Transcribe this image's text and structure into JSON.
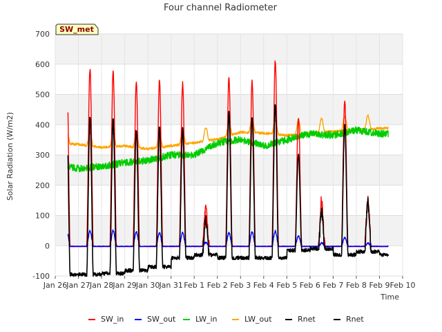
{
  "chart_data": {
    "type": "line",
    "title": "Four channel Radiometer",
    "xlabel": "Time",
    "ylabel": "Solar Radiation (W/m2)",
    "badge": "SW_met",
    "ylim": [
      -100,
      700
    ],
    "xlim": [
      0,
      15
    ],
    "yticks": [
      -100,
      0,
      100,
      200,
      300,
      400,
      500,
      600,
      700
    ],
    "xticks": [
      {
        "x": 0,
        "label": "Jan 26"
      },
      {
        "x": 1,
        "label": "Jan 27"
      },
      {
        "x": 2,
        "label": "Jan 28"
      },
      {
        "x": 3,
        "label": "Jan 29"
      },
      {
        "x": 4,
        "label": "Jan 30"
      },
      {
        "x": 5,
        "label": "Jan 31"
      },
      {
        "x": 6,
        "label": "Feb 1"
      },
      {
        "x": 7,
        "label": "Feb 2"
      },
      {
        "x": 8,
        "label": "Feb 3"
      },
      {
        "x": 9,
        "label": "Feb 4"
      },
      {
        "x": 10,
        "label": "Feb 5"
      },
      {
        "x": 11,
        "label": "Feb 6"
      },
      {
        "x": 12,
        "label": "Feb 7"
      },
      {
        "x": 13,
        "label": "Feb 8"
      },
      {
        "x": 14,
        "label": "Feb 9"
      },
      {
        "x": 15,
        "label": "Feb 10"
      }
    ],
    "grid": true,
    "legend_position": "bottom",
    "days": [
      0.5,
      1.5,
      2.5,
      3.5,
      4.5,
      5.5,
      6.5,
      7.5,
      8.5,
      9.5,
      10.5,
      11.5,
      12.5,
      13.5
    ],
    "sw_in_peaks": [
      575,
      585,
      575,
      540,
      545,
      535,
      120,
      555,
      540,
      610,
      425,
      150,
      480,
      150
    ],
    "sw_out_peaks": [
      50,
      50,
      50,
      45,
      42,
      42,
      10,
      42,
      45,
      48,
      32,
      8,
      28,
      8
    ],
    "rnet_peaks": [
      420,
      425,
      415,
      385,
      392,
      385,
      90,
      440,
      425,
      470,
      305,
      110,
      400,
      140
    ],
    "rnet_night": [
      -95,
      -95,
      -92,
      -82,
      -70,
      -40,
      -30,
      -40,
      -40,
      -40,
      -15,
      -10,
      -30,
      -20
    ],
    "lw_in_daily": [
      275,
      255,
      262,
      275,
      282,
      300,
      300,
      340,
      350,
      330,
      350,
      370,
      365,
      382,
      370
    ],
    "lw_out_daily": [
      340,
      335,
      325,
      330,
      320,
      330,
      340,
      352,
      375,
      372,
      365,
      372,
      378,
      382,
      388
    ],
    "series": [
      {
        "name": "SW_in",
        "color": "#ff0000"
      },
      {
        "name": "SW_out",
        "color": "#0000ff"
      },
      {
        "name": "LW_in",
        "color": "#00cc00"
      },
      {
        "name": "LW_out",
        "color": "#ffa500"
      },
      {
        "name": "Rnet",
        "color": "#000000"
      },
      {
        "name": "Rnet",
        "color": "#000000"
      }
    ]
  }
}
